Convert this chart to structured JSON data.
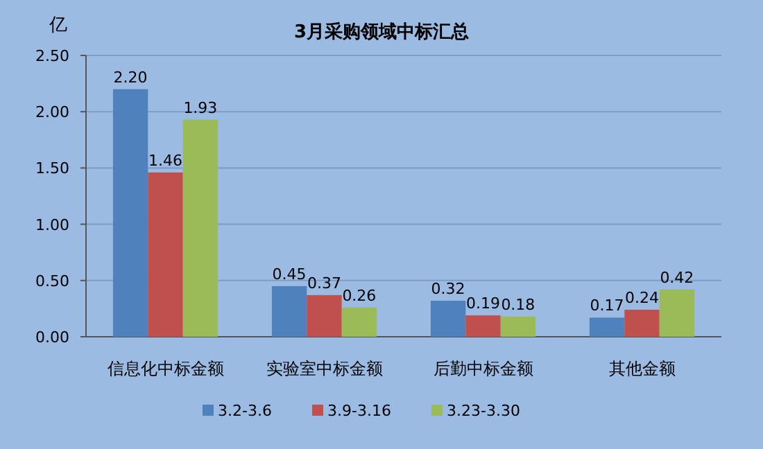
{
  "chart_data": {
    "type": "bar",
    "title": "3月采购领域中标汇总",
    "ylabel": "亿",
    "categories": [
      "信息化中标金额",
      "实验室中标金额",
      "后勤中标金额",
      "其他金额"
    ],
    "series": [
      {
        "name": "3.2-3.6",
        "color": "#4f81bd",
        "values": [
          2.2,
          0.45,
          0.32,
          0.17
        ],
        "value_labels": [
          "2.20",
          "0.45",
          "0.32",
          "0.17"
        ]
      },
      {
        "name": "3.9-3.16",
        "color": "#c0504d",
        "values": [
          1.46,
          0.37,
          0.19,
          0.24
        ],
        "value_labels": [
          "1.46",
          "0.37",
          "0.19",
          "0.24"
        ]
      },
      {
        "name": "3.23-3.30",
        "color": "#9bbb59",
        "values": [
          1.93,
          0.26,
          0.18,
          0.42
        ],
        "value_labels": [
          "1.93",
          "0.26",
          "0.18",
          "0.42"
        ]
      }
    ],
    "ylim": [
      0,
      2.5
    ],
    "yticks": [
      {
        "value": 0,
        "label": "0.00"
      },
      {
        "value": 0.5,
        "label": "0.50"
      },
      {
        "value": 1,
        "label": "1.00"
      },
      {
        "value": 1.5,
        "label": "1.50"
      },
      {
        "value": 2,
        "label": "2.00"
      },
      {
        "value": 2.5,
        "label": "2.50"
      }
    ],
    "grid": "y",
    "legend": "bottom"
  }
}
